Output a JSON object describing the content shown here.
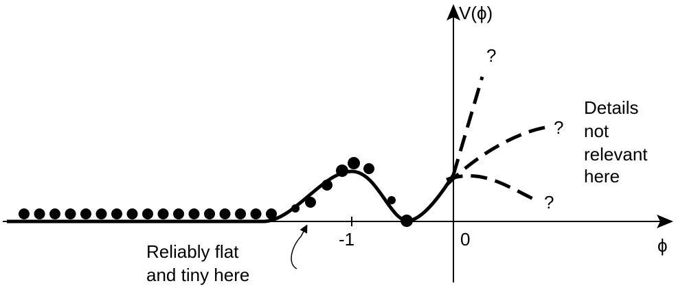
{
  "diagram": {
    "y_axis_label": "V(ϕ)",
    "x_axis_label": "ϕ",
    "tick_labels": [
      "-1",
      "0"
    ],
    "question_marks": [
      "?",
      "?",
      "?"
    ],
    "annotation_left": [
      "Reliably flat",
      "and tiny here"
    ],
    "annotation_right": [
      "Details",
      "not",
      "relevant",
      "here"
    ],
    "colors": {
      "ink": "#000000",
      "background": "#ffffff"
    }
  }
}
